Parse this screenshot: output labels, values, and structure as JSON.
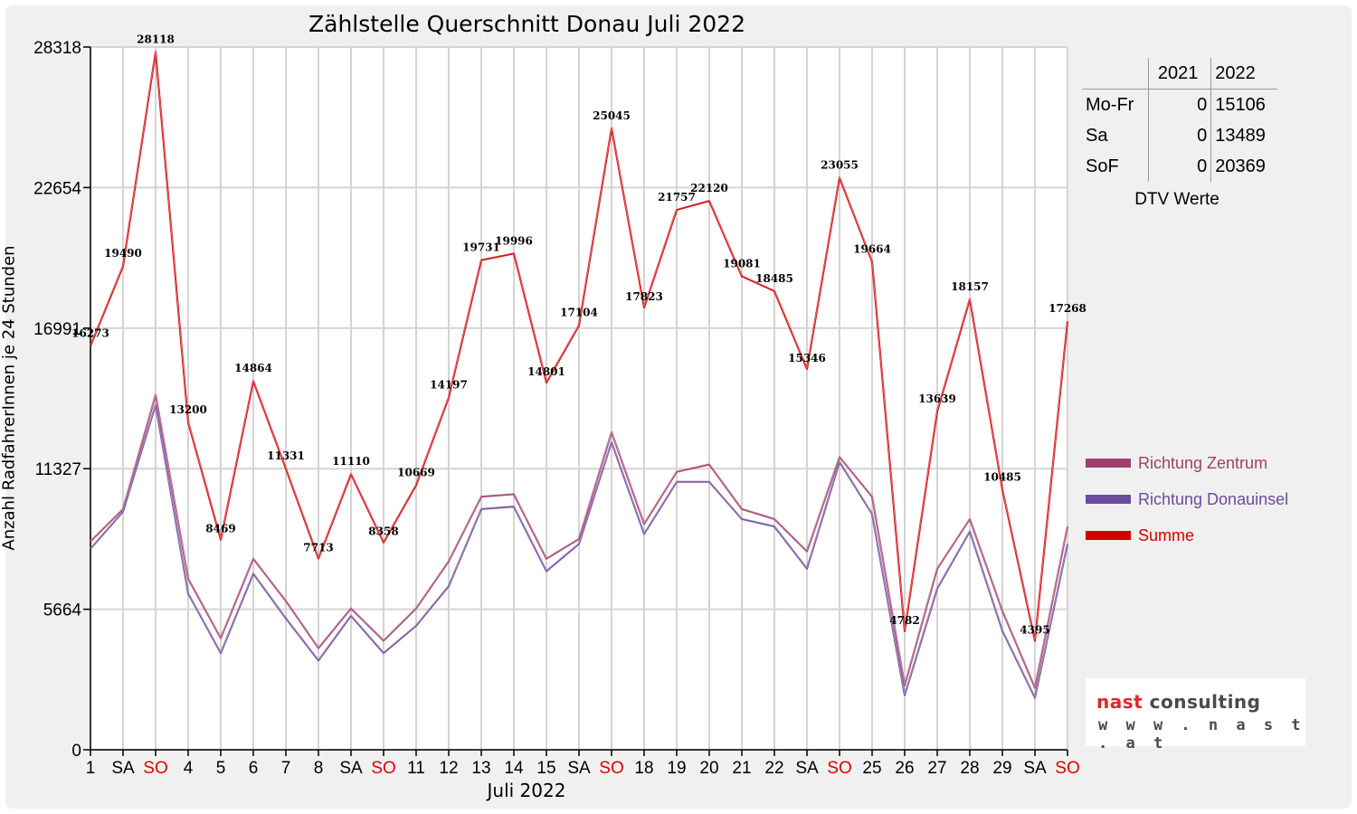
{
  "chart_data": {
    "type": "line",
    "title": "Zählstelle Querschnitt Donau Juli 2022",
    "xlabel": "Juli 2022",
    "ylabel": "Anzahl RadfahrerInnen je 24 Stunden",
    "ylim": [
      0,
      28318
    ],
    "yticks": [
      "0",
      "5664",
      "11327",
      "16991",
      "22654",
      "28318"
    ],
    "categories": [
      "1",
      "SA",
      "SO",
      "4",
      "5",
      "6",
      "7",
      "8",
      "SA",
      "SO",
      "11",
      "12",
      "13",
      "14",
      "15",
      "SA",
      "SO",
      "18",
      "19",
      "20",
      "21",
      "22",
      "SA",
      "SO",
      "25",
      "26",
      "27",
      "28",
      "29",
      "SA",
      "SO"
    ],
    "category_colors": [
      "#000000",
      "#000000",
      "#e00000",
      "#000000",
      "#000000",
      "#000000",
      "#000000",
      "#000000",
      "#000000",
      "#e00000",
      "#000000",
      "#000000",
      "#000000",
      "#000000",
      "#000000",
      "#000000",
      "#e00000",
      "#000000",
      "#000000",
      "#000000",
      "#000000",
      "#000000",
      "#000000",
      "#e00000",
      "#000000",
      "#000000",
      "#000000",
      "#000000",
      "#000000",
      "#000000",
      "#e00000"
    ],
    "grid": true,
    "legend_position": "right",
    "series": [
      {
        "name": "Richtung Zentrum",
        "color": "#a0406e",
        "values": [
          8400,
          9700,
          14300,
          6900,
          4500,
          7700,
          6000,
          4100,
          5700,
          4400,
          5700,
          7600,
          10200,
          10300,
          7700,
          8500,
          12800,
          9100,
          11200,
          11500,
          9700,
          9300,
          8000,
          11800,
          10200,
          2600,
          7300,
          9300,
          5600,
          2500,
          9000
        ]
      },
      {
        "name": "Richtung Donauinsel",
        "color": "#6a4c9c",
        "values": [
          8100,
          9600,
          13900,
          6300,
          3900,
          7100,
          5300,
          3600,
          5400,
          3900,
          5000,
          6600,
          9700,
          9800,
          7200,
          8300,
          12400,
          8700,
          10800,
          10800,
          9300,
          9000,
          7300,
          11600,
          9500,
          2200,
          6500,
          8800,
          4800,
          2100,
          8300
        ]
      },
      {
        "name": "Summe",
        "color": "#d40000",
        "values": [
          16273,
          19490,
          28118,
          13200,
          8469,
          14864,
          11331,
          7713,
          11110,
          8358,
          10669,
          14197,
          19731,
          19996,
          14801,
          17104,
          25045,
          17823,
          21757,
          22120,
          19081,
          18485,
          15346,
          23055,
          19664,
          4782,
          13639,
          18157,
          10485,
          4395,
          17268
        ],
        "labels": [
          "16273",
          "19490",
          "28118",
          "13200",
          "8469",
          "14864",
          "11331",
          "7713",
          "11110",
          "8358",
          "10669",
          "14197",
          "19731",
          "19996",
          "14801",
          "17104",
          "25045",
          "17823",
          "21757",
          "22120",
          "19081",
          "18485",
          "15346",
          "23055",
          "19664",
          "4782",
          "13639",
          "18157",
          "10485",
          "4395",
          "17268"
        ]
      }
    ]
  },
  "dtv": {
    "caption": "DTV Werte",
    "headers": [
      "",
      "2021",
      "2022"
    ],
    "rows": [
      {
        "label": "Mo-Fr",
        "v2021": "0",
        "v2022": "15106"
      },
      {
        "label": "Sa",
        "v2021": "0",
        "v2022": "13489"
      },
      {
        "label": "SoF",
        "v2021": "0",
        "v2022": "20369"
      }
    ]
  },
  "logo": {
    "part1": "nast",
    "part2": "consulting",
    "url": "w w w . n a s t . a t"
  }
}
